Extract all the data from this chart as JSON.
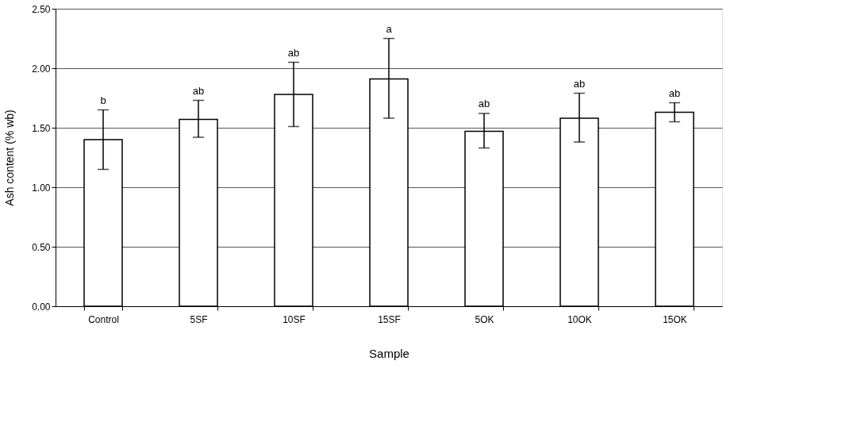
{
  "chart_data": {
    "type": "bar",
    "xlabel": "Sample",
    "ylabel": "Ash content (% wb)",
    "categories": [
      "Control",
      "5SF",
      "10SF",
      "15SF",
      "5OK",
      "10OK",
      "15OK"
    ],
    "values": [
      1.4,
      1.57,
      1.78,
      1.91,
      1.47,
      1.58,
      1.63
    ],
    "errors": [
      [
        1.15,
        1.65
      ],
      [
        1.42,
        1.73
      ],
      [
        1.51,
        2.05
      ],
      [
        1.58,
        2.25
      ],
      [
        1.33,
        1.62
      ],
      [
        1.38,
        1.79
      ],
      [
        1.55,
        1.71
      ]
    ],
    "color": "#ffffff",
    "ylim": [
      0,
      2.5
    ],
    "yticks": [
      {
        "value": 0,
        "label": "0.00"
      },
      {
        "value": 0.5,
        "label": "0.50"
      },
      {
        "value": 1,
        "label": "1.00"
      },
      {
        "value": 1.5,
        "label": "1.50"
      },
      {
        "value": 2,
        "label": "2.00"
      },
      {
        "value": 2.5,
        "label": "2.50"
      }
    ],
    "grid": "y",
    "annotations": [
      {
        "text": "b",
        "x": "Control",
        "y": 1.65
      },
      {
        "text": "ab",
        "x": "5SF",
        "y": 1.73
      },
      {
        "text": "ab",
        "x": "10SF",
        "y": 2.05
      },
      {
        "text": "a",
        "x": "15SF",
        "y": 2.25
      },
      {
        "text": "ab",
        "x": "5OK",
        "y": 1.62
      },
      {
        "text": "ab",
        "x": "10OK",
        "y": 1.79
      },
      {
        "text": "ab",
        "x": "15OK",
        "y": 1.71
      }
    ]
  }
}
